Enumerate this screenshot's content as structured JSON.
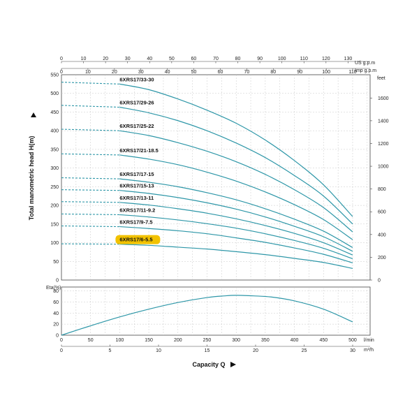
{
  "chart_data": [
    {
      "type": "line",
      "ylabel": "Total manometric head H(m)",
      "left_unit": "",
      "right_unit": "feet",
      "top_units": [
        "US g.p.m",
        "Imp g.p.m"
      ],
      "xlim_lmin": [
        0,
        530
      ],
      "ylim": [
        0,
        550
      ],
      "y_ticks": [
        0,
        50,
        100,
        150,
        200,
        250,
        300,
        350,
        400,
        450,
        500,
        550
      ],
      "right_ticks": [
        0,
        200,
        400,
        600,
        800,
        1000,
        1200,
        1400,
        1600
      ],
      "us_gpm_ticks": [
        0,
        10,
        20,
        30,
        40,
        50,
        60,
        70,
        80,
        90,
        100,
        110,
        120,
        130
      ],
      "imp_gpm_ticks": [
        0,
        10,
        20,
        30,
        40,
        50,
        60,
        70,
        80,
        90,
        100,
        110
      ],
      "grid": true,
      "series": [
        {
          "name": "6XRS17/33-30",
          "shutoff": 530,
          "points": [
            [
              100,
              525
            ],
            [
              150,
              510
            ],
            [
              200,
              485
            ],
            [
              250,
              455
            ],
            [
              300,
              420
            ],
            [
              350,
              375
            ],
            [
              400,
              320
            ],
            [
              450,
              255
            ],
            [
              500,
              170
            ]
          ]
        },
        {
          "name": "6XRS17/29-26",
          "shutoff": 468,
          "points": [
            [
              100,
              463
            ],
            [
              150,
              448
            ],
            [
              200,
              427
            ],
            [
              250,
              400
            ],
            [
              300,
              367
            ],
            [
              350,
              328
            ],
            [
              400,
              280
            ],
            [
              450,
              225
            ],
            [
              500,
              150
            ]
          ]
        },
        {
          "name": "6XRS17/25-22",
          "shutoff": 404,
          "points": [
            [
              100,
              400
            ],
            [
              150,
              387
            ],
            [
              200,
              368
            ],
            [
              250,
              345
            ],
            [
              300,
              317
            ],
            [
              350,
              283
            ],
            [
              400,
              242
            ],
            [
              450,
              194
            ],
            [
              500,
              129
            ]
          ]
        },
        {
          "name": "6XRS17/21-18.5",
          "shutoff": 338,
          "points": [
            [
              100,
              335
            ],
            [
              150,
              324
            ],
            [
              200,
              309
            ],
            [
              250,
              289
            ],
            [
              300,
              265
            ],
            [
              350,
              236
            ],
            [
              400,
              202
            ],
            [
              450,
              162
            ],
            [
              500,
              108
            ]
          ]
        },
        {
          "name": "6XRS17/17-15",
          "shutoff": 274,
          "points": [
            [
              100,
              271
            ],
            [
              150,
              262
            ],
            [
              200,
              250
            ],
            [
              250,
              234
            ],
            [
              300,
              215
            ],
            [
              350,
              191
            ],
            [
              400,
              163
            ],
            [
              450,
              131
            ],
            [
              500,
              87
            ]
          ]
        },
        {
          "name": "6XRS17/15-13",
          "shutoff": 242,
          "points": [
            [
              100,
              240
            ],
            [
              150,
              232
            ],
            [
              200,
              221
            ],
            [
              250,
              207
            ],
            [
              300,
              190
            ],
            [
              350,
              169
            ],
            [
              400,
              144
            ],
            [
              450,
              116
            ],
            [
              500,
              77
            ]
          ]
        },
        {
          "name": "6XRS17/13-11",
          "shutoff": 210,
          "points": [
            [
              100,
              208
            ],
            [
              150,
              201
            ],
            [
              200,
              191
            ],
            [
              250,
              179
            ],
            [
              300,
              164
            ],
            [
              350,
              146
            ],
            [
              400,
              125
            ],
            [
              450,
              100
            ],
            [
              500,
              67
            ]
          ]
        },
        {
          "name": "6XRS17/11-9.2",
          "shutoff": 177,
          "points": [
            [
              100,
              175
            ],
            [
              150,
              169
            ],
            [
              200,
              161
            ],
            [
              250,
              151
            ],
            [
              300,
              139
            ],
            [
              350,
              124
            ],
            [
              400,
              106
            ],
            [
              450,
              85
            ],
            [
              500,
              57
            ]
          ]
        },
        {
          "name": "6XRS17/9-7.5",
          "shutoff": 145,
          "points": [
            [
              100,
              143
            ],
            [
              150,
              138
            ],
            [
              200,
              132
            ],
            [
              250,
              124
            ],
            [
              300,
              113
            ],
            [
              350,
              101
            ],
            [
              400,
              86
            ],
            [
              450,
              69
            ],
            [
              500,
              46
            ]
          ]
        },
        {
          "name": "6XRS17/6-5.5",
          "shutoff": 97,
          "points": [
            [
              100,
              96
            ],
            [
              150,
              93
            ],
            [
              200,
              88
            ],
            [
              250,
              83
            ],
            [
              300,
              76
            ],
            [
              350,
              68
            ],
            [
              400,
              58
            ],
            [
              450,
              47
            ],
            [
              500,
              31
            ]
          ],
          "highlighted": true
        }
      ],
      "highlight_color": "#f2c200",
      "line_color": "#2e97a8"
    },
    {
      "type": "line",
      "ylabel": "Eta(%)",
      "x_unit_lmin": "l/min",
      "x_unit_m3h": "m³/h",
      "xlabel": "Capacity Q",
      "ylim": [
        0,
        80
      ],
      "y_ticks": [
        0,
        20,
        40,
        60,
        80
      ],
      "x_ticks_lmin": [
        0,
        50,
        100,
        150,
        200,
        250,
        300,
        350,
        400,
        450,
        500
      ],
      "x_ticks_m3h": [
        0,
        5,
        10,
        15,
        20,
        25,
        30
      ],
      "grid": true,
      "series": [
        {
          "points": [
            [
              0,
              0
            ],
            [
              50,
              17
            ],
            [
              100,
              33
            ],
            [
              150,
              47
            ],
            [
              200,
              59
            ],
            [
              250,
              68
            ],
            [
              280,
              71
            ],
            [
              300,
              72
            ],
            [
              330,
              71
            ],
            [
              360,
              69
            ],
            [
              400,
              62
            ],
            [
              450,
              47
            ],
            [
              500,
              24
            ]
          ]
        }
      ]
    }
  ]
}
